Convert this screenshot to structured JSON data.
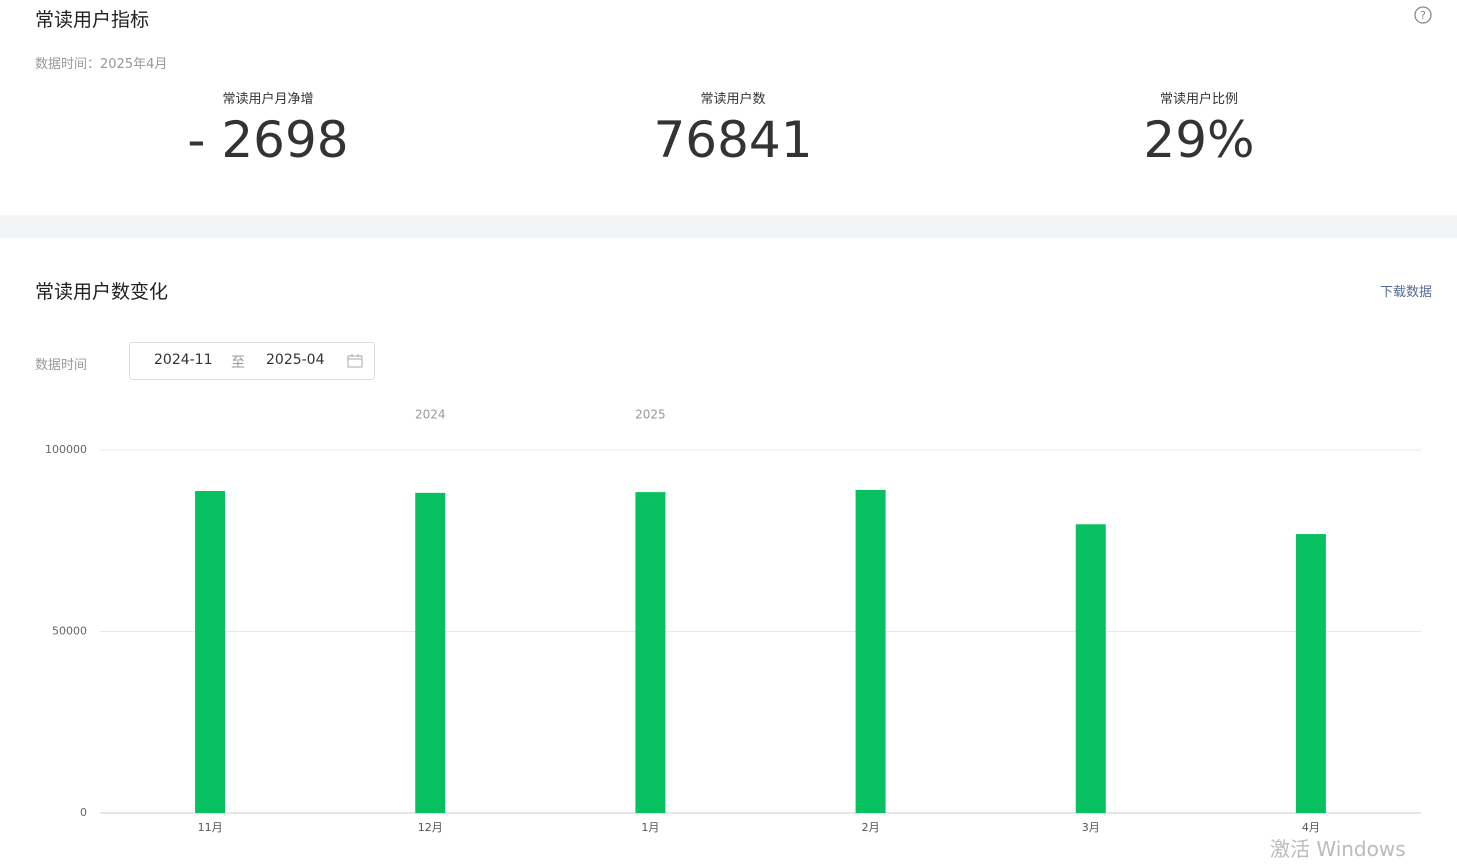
{
  "header": {
    "title": "常读用户指标",
    "date_label": "数据时间：2025年4月"
  },
  "metrics": [
    {
      "label": "常读用户月净增",
      "value": "- 2698"
    },
    {
      "label": "常读用户数",
      "value": "76841"
    },
    {
      "label": "常读用户比例",
      "value": "29%"
    }
  ],
  "section": {
    "title": "常读用户数变化",
    "download": "下载数据",
    "date_filter_label": "数据时间",
    "date_from": "2024-11",
    "date_sep": "至",
    "date_to": "2025-04"
  },
  "chart_data": {
    "type": "bar",
    "categories": [
      "11月",
      "12月",
      "1月",
      "2月",
      "3月",
      "4月"
    ],
    "year_labels": [
      null,
      "2024",
      "2025",
      null,
      null,
      null
    ],
    "values": [
      88700,
      88200,
      88400,
      89000,
      79539,
      76841
    ],
    "color": "#07c160",
    "ylim": [
      0,
      100000
    ],
    "yticks": [
      0,
      50000,
      100000
    ],
    "grid": true
  },
  "watermark": "激活 Windows"
}
